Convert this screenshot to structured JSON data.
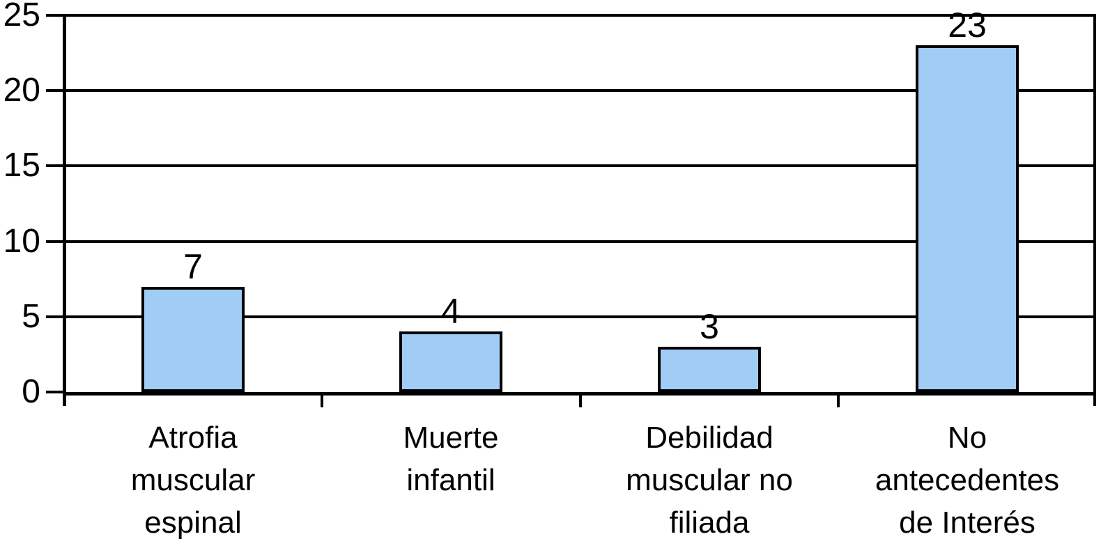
{
  "chart_data": {
    "type": "bar",
    "title": "",
    "xlabel": "",
    "ylabel": "",
    "categories": [
      "Atrofia muscular espinal",
      "Muerte infantil",
      "Debilidad muscular no filiada",
      "No antecedentes de Interés"
    ],
    "category_lines": [
      [
        "Atrofia",
        "muscular",
        "espinal"
      ],
      [
        "Muerte",
        "infantil"
      ],
      [
        "Debilidad",
        "muscular no",
        "filiada"
      ],
      [
        "No",
        "antecedentes",
        "de Interés"
      ]
    ],
    "values": [
      7,
      4,
      3,
      23
    ],
    "value_labels": [
      "7",
      "4",
      "3",
      "23"
    ],
    "ylim": [
      0,
      25
    ],
    "yticks": [
      0,
      5,
      10,
      15,
      20,
      25
    ],
    "ytick_labels": [
      "0",
      "5",
      "10",
      "15",
      "20",
      "25"
    ],
    "grid": true,
    "legend": false,
    "colors": {
      "bar_fill": "#A1CCF6",
      "bar_border": "#000000",
      "axis": "#000000",
      "gridline": "#000000",
      "text": "#000000",
      "background": "#FFFFFF"
    }
  }
}
